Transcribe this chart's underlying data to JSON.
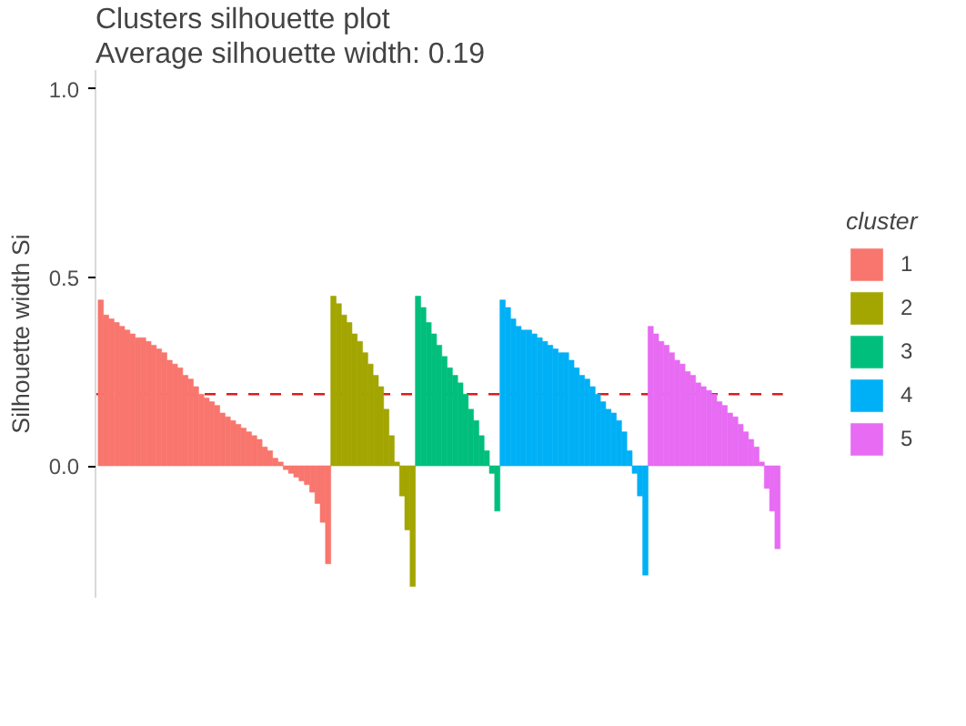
{
  "chart_data": {
    "type": "bar",
    "title": "Clusters silhouette plot",
    "subtitle": "Average silhouette width: 0.19",
    "ylabel": "Silhouette width Si",
    "legend_title": "cluster",
    "legend": "right",
    "grid": false,
    "tick_labels": "y",
    "ylim": [
      -0.35,
      1.05
    ],
    "yticks": [
      {
        "value": 0,
        "label": "0.0"
      },
      {
        "value": 0.5,
        "label": "0.5"
      },
      {
        "value": 1.0,
        "label": "1.0"
      }
    ],
    "ref_lines": [
      {
        "axis": "y",
        "value": 0.19,
        "color": "#e31a1c",
        "line_style": "dashed"
      }
    ],
    "categories": [
      null,
      null,
      null,
      null,
      null,
      null,
      null,
      null,
      null,
      null,
      null,
      null,
      null,
      null,
      null,
      null,
      null,
      null,
      null,
      null,
      null,
      null,
      null,
      null,
      null,
      null,
      null,
      null,
      null,
      null,
      null,
      null,
      null,
      null,
      null,
      null,
      null,
      null,
      null,
      null,
      null,
      null,
      null,
      null,
      null,
      null,
      null,
      null,
      null,
      null,
      null,
      null,
      null,
      null,
      null,
      null,
      null,
      null,
      null,
      null,
      null,
      null,
      null,
      null,
      null,
      null,
      null,
      null,
      null,
      null,
      null,
      null,
      null,
      null,
      null,
      null,
      null,
      null,
      null,
      null,
      null,
      null,
      null,
      null,
      null,
      null,
      null,
      null,
      null,
      null,
      null,
      null,
      null,
      null,
      null,
      null,
      null,
      null,
      null,
      null,
      null,
      null,
      null,
      null,
      null,
      null,
      null,
      null,
      null,
      null,
      null,
      null,
      null,
      null,
      null,
      null,
      null,
      null,
      null,
      null,
      null,
      null,
      null,
      null,
      null,
      null,
      null,
      null,
      null
    ],
    "series": [
      {
        "name": "1",
        "color": "#f8766d",
        "values": [
          0.44,
          0.4,
          0.39,
          0.38,
          0.37,
          0.36,
          0.35,
          0.34,
          0.34,
          0.33,
          0.32,
          0.31,
          0.3,
          0.28,
          0.27,
          0.26,
          0.24,
          0.23,
          0.21,
          0.19,
          0.18,
          0.17,
          0.16,
          0.14,
          0.13,
          0.12,
          0.11,
          0.1,
          0.09,
          0.08,
          0.07,
          0.05,
          0.04,
          0.02,
          0.01,
          -0.01,
          -0.02,
          -0.03,
          -0.04,
          -0.05,
          -0.07,
          -0.1,
          -0.15,
          -0.26,
          null,
          null,
          null,
          null,
          null,
          null,
          null,
          null,
          null,
          null,
          null,
          null,
          null,
          null,
          null,
          null,
          null,
          null,
          null,
          null,
          null,
          null,
          null,
          null,
          null,
          null,
          null,
          null,
          null,
          null,
          null,
          null,
          null,
          null,
          null,
          null,
          null,
          null,
          null,
          null,
          null,
          null,
          null,
          null,
          null,
          null,
          null,
          null,
          null,
          null,
          null,
          null,
          null,
          null,
          null,
          null,
          null,
          null,
          null,
          null,
          null,
          null,
          null,
          null,
          null,
          null,
          null,
          null,
          null,
          null,
          null,
          null,
          null,
          null,
          null,
          null,
          null,
          null,
          null,
          null,
          null,
          null,
          null,
          null,
          null
        ]
      },
      {
        "name": "2",
        "color": "#a3a500",
        "values": [
          null,
          null,
          null,
          null,
          null,
          null,
          null,
          null,
          null,
          null,
          null,
          null,
          null,
          null,
          null,
          null,
          null,
          null,
          null,
          null,
          null,
          null,
          null,
          null,
          null,
          null,
          null,
          null,
          null,
          null,
          null,
          null,
          null,
          null,
          null,
          null,
          null,
          null,
          null,
          null,
          null,
          null,
          null,
          null,
          0.45,
          0.43,
          0.4,
          0.38,
          0.35,
          0.33,
          0.3,
          0.27,
          0.24,
          0.21,
          0.15,
          0.08,
          0.01,
          -0.08,
          -0.17,
          -0.32,
          null,
          null,
          null,
          null,
          null,
          null,
          null,
          null,
          null,
          null,
          null,
          null,
          null,
          null,
          null,
          null,
          null,
          null,
          null,
          null,
          null,
          null,
          null,
          null,
          null,
          null,
          null,
          null,
          null,
          null,
          null,
          null,
          null,
          null,
          null,
          null,
          null,
          null,
          null,
          null,
          null,
          null,
          null,
          null,
          null,
          null,
          null,
          null,
          null,
          null,
          null,
          null,
          null,
          null,
          null,
          null,
          null,
          null,
          null,
          null,
          null,
          null,
          null,
          null,
          null,
          null,
          null,
          null,
          null
        ]
      },
      {
        "name": "3",
        "color": "#00bf7d",
        "values": [
          null,
          null,
          null,
          null,
          null,
          null,
          null,
          null,
          null,
          null,
          null,
          null,
          null,
          null,
          null,
          null,
          null,
          null,
          null,
          null,
          null,
          null,
          null,
          null,
          null,
          null,
          null,
          null,
          null,
          null,
          null,
          null,
          null,
          null,
          null,
          null,
          null,
          null,
          null,
          null,
          null,
          null,
          null,
          null,
          null,
          null,
          null,
          null,
          null,
          null,
          null,
          null,
          null,
          null,
          null,
          null,
          null,
          null,
          null,
          null,
          0.45,
          0.42,
          0.38,
          0.35,
          0.32,
          0.29,
          0.26,
          0.24,
          0.22,
          0.19,
          0.15,
          0.12,
          0.08,
          0.04,
          -0.02,
          -0.12,
          null,
          null,
          null,
          null,
          null,
          null,
          null,
          null,
          null,
          null,
          null,
          null,
          null,
          null,
          null,
          null,
          null,
          null,
          null,
          null,
          null,
          null,
          null,
          null,
          null,
          null,
          null,
          null,
          null,
          null,
          null,
          null,
          null,
          null,
          null,
          null,
          null,
          null,
          null,
          null,
          null,
          null,
          null,
          null,
          null,
          null,
          null,
          null,
          null,
          null,
          null,
          null,
          null
        ]
      },
      {
        "name": "4",
        "color": "#00b0f6",
        "values": [
          null,
          null,
          null,
          null,
          null,
          null,
          null,
          null,
          null,
          null,
          null,
          null,
          null,
          null,
          null,
          null,
          null,
          null,
          null,
          null,
          null,
          null,
          null,
          null,
          null,
          null,
          null,
          null,
          null,
          null,
          null,
          null,
          null,
          null,
          null,
          null,
          null,
          null,
          null,
          null,
          null,
          null,
          null,
          null,
          null,
          null,
          null,
          null,
          null,
          null,
          null,
          null,
          null,
          null,
          null,
          null,
          null,
          null,
          null,
          null,
          null,
          null,
          null,
          null,
          null,
          null,
          null,
          null,
          null,
          null,
          null,
          null,
          null,
          null,
          null,
          null,
          0.44,
          0.42,
          0.39,
          0.37,
          0.36,
          0.36,
          0.35,
          0.34,
          0.33,
          0.32,
          0.31,
          0.3,
          0.3,
          0.28,
          0.26,
          0.24,
          0.23,
          0.21,
          0.19,
          0.17,
          0.15,
          0.14,
          0.12,
          0.09,
          0.04,
          -0.02,
          -0.08,
          -0.29,
          null,
          null,
          null,
          null,
          null,
          null,
          null,
          null,
          null,
          null,
          null,
          null,
          null,
          null,
          null,
          null,
          null,
          null,
          null,
          null,
          null,
          null,
          null,
          null,
          null
        ]
      },
      {
        "name": "5",
        "color": "#e76bf3",
        "values": [
          null,
          null,
          null,
          null,
          null,
          null,
          null,
          null,
          null,
          null,
          null,
          null,
          null,
          null,
          null,
          null,
          null,
          null,
          null,
          null,
          null,
          null,
          null,
          null,
          null,
          null,
          null,
          null,
          null,
          null,
          null,
          null,
          null,
          null,
          null,
          null,
          null,
          null,
          null,
          null,
          null,
          null,
          null,
          null,
          null,
          null,
          null,
          null,
          null,
          null,
          null,
          null,
          null,
          null,
          null,
          null,
          null,
          null,
          null,
          null,
          null,
          null,
          null,
          null,
          null,
          null,
          null,
          null,
          null,
          null,
          null,
          null,
          null,
          null,
          null,
          null,
          null,
          null,
          null,
          null,
          null,
          null,
          null,
          null,
          null,
          null,
          null,
          null,
          null,
          null,
          null,
          null,
          null,
          null,
          null,
          null,
          null,
          null,
          null,
          null,
          null,
          null,
          null,
          null,
          0.37,
          0.35,
          0.33,
          0.32,
          0.3,
          0.28,
          0.27,
          0.25,
          0.24,
          0.22,
          0.21,
          0.2,
          0.19,
          0.17,
          0.16,
          0.14,
          0.13,
          0.11,
          0.09,
          0.07,
          0.05,
          0.01,
          -0.06,
          -0.12,
          -0.22
        ]
      }
    ]
  }
}
